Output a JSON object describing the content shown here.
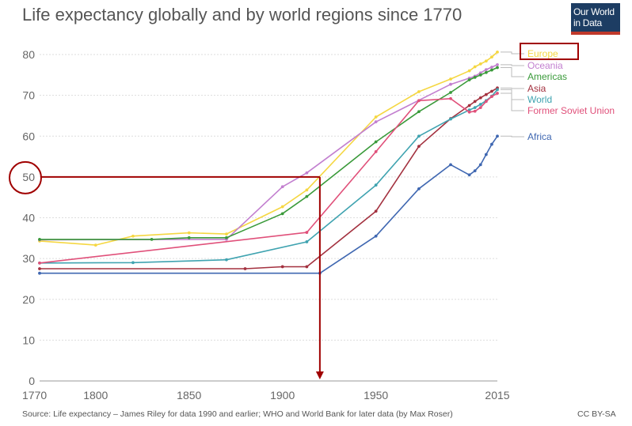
{
  "title": "Life expectancy globally and by world regions since 1770",
  "logo": {
    "line1": "Our World",
    "line2": "in Data"
  },
  "source": "Source: Life expectancy – James Riley for data 1990 and earlier; WHO and World Bank for later data (by Max Roser)",
  "license": "CC BY-SA",
  "colors": {
    "Europe": "#f5d742",
    "Oceania": "#c27fcf",
    "Americas": "#3a9a3a",
    "Asia": "#a3313f",
    "World": "#3fa3b0",
    "Former Soviet Union": "#e0507a",
    "Africa": "#3f67b1",
    "annotation": "#a00000",
    "grid": "#dddddd",
    "axis_text": "#666666"
  },
  "chart_data": {
    "type": "line",
    "xlabel": "",
    "ylabel": "",
    "xlim": [
      1770,
      2015
    ],
    "ylim": [
      0,
      80
    ],
    "x_ticks": [
      1770,
      1800,
      1850,
      1900,
      1950,
      2015
    ],
    "y_ticks": [
      0,
      10,
      20,
      30,
      40,
      50,
      60,
      70,
      80
    ],
    "grid": "horizontal dotted",
    "series": [
      {
        "name": "Europe",
        "points": [
          [
            1770,
            34.3
          ],
          [
            1800,
            33.3
          ],
          [
            1820,
            35.5
          ],
          [
            1850,
            36.3
          ],
          [
            1870,
            36
          ],
          [
            1900,
            42.7
          ],
          [
            1913,
            46.8
          ],
          [
            1950,
            64.7
          ],
          [
            1973,
            70.9
          ],
          [
            1990,
            74
          ],
          [
            2000,
            76
          ],
          [
            2003,
            77
          ],
          [
            2006,
            77.7
          ],
          [
            2009,
            78.4
          ],
          [
            2012,
            79.4
          ],
          [
            2015,
            80.6
          ]
        ]
      },
      {
        "name": "Oceania",
        "points": [
          [
            1770,
            34.6
          ],
          [
            1870,
            34.7
          ],
          [
            1900,
            47.6
          ],
          [
            1913,
            51
          ],
          [
            1950,
            63.5
          ],
          [
            1990,
            72.7
          ],
          [
            2000,
            74.2
          ],
          [
            2003,
            74.7
          ],
          [
            2006,
            75.5
          ],
          [
            2009,
            76.3
          ],
          [
            2012,
            76.9
          ],
          [
            2015,
            77.5
          ]
        ]
      },
      {
        "name": "Americas",
        "points": [
          [
            1770,
            34.7
          ],
          [
            1830,
            34.7
          ],
          [
            1850,
            35.1
          ],
          [
            1870,
            35.1
          ],
          [
            1900,
            41
          ],
          [
            1913,
            45.2
          ],
          [
            1950,
            58.6
          ],
          [
            1973,
            66
          ],
          [
            1990,
            70.7
          ],
          [
            2000,
            73.8
          ],
          [
            2003,
            74.4
          ],
          [
            2006,
            75
          ],
          [
            2009,
            75.6
          ],
          [
            2012,
            76.2
          ],
          [
            2015,
            76.8
          ]
        ]
      },
      {
        "name": "Asia",
        "points": [
          [
            1770,
            27.5
          ],
          [
            1880,
            27.5
          ],
          [
            1900,
            28
          ],
          [
            1913,
            28
          ],
          [
            1950,
            41.6
          ],
          [
            1973,
            57.5
          ],
          [
            1990,
            64.3
          ],
          [
            2000,
            67.5
          ],
          [
            2003,
            68.5
          ],
          [
            2006,
            69.4
          ],
          [
            2009,
            70.2
          ],
          [
            2012,
            71
          ],
          [
            2015,
            71.8
          ]
        ]
      },
      {
        "name": "World",
        "points": [
          [
            1770,
            28.9
          ],
          [
            1820,
            29
          ],
          [
            1870,
            29.7
          ],
          [
            1913,
            34.1
          ],
          [
            1950,
            48
          ],
          [
            1973,
            60
          ],
          [
            1990,
            64.2
          ],
          [
            2000,
            66.4
          ],
          [
            2003,
            67
          ],
          [
            2006,
            67.8
          ],
          [
            2009,
            68.7
          ],
          [
            2012,
            69.8
          ],
          [
            2015,
            71.4
          ]
        ]
      },
      {
        "name": "Former Soviet Union",
        "points": [
          [
            1770,
            28.9
          ],
          [
            1913,
            36.4
          ],
          [
            1950,
            56.2
          ],
          [
            1973,
            68.7
          ],
          [
            1990,
            69.2
          ],
          [
            2000,
            65.9
          ],
          [
            2003,
            66.1
          ],
          [
            2006,
            67
          ],
          [
            2009,
            68.5
          ],
          [
            2012,
            69.7
          ],
          [
            2015,
            70.5
          ]
        ]
      },
      {
        "name": "Africa",
        "points": [
          [
            1770,
            26.4
          ],
          [
            1920,
            26.4
          ],
          [
            1950,
            35.5
          ],
          [
            1973,
            47.1
          ],
          [
            1990,
            53
          ],
          [
            2000,
            50.5
          ],
          [
            2003,
            51.5
          ],
          [
            2006,
            53
          ],
          [
            2009,
            55.5
          ],
          [
            2012,
            58
          ],
          [
            2015,
            60
          ]
        ]
      }
    ],
    "label_order": [
      "Europe",
      "Oceania",
      "Americas",
      "Asia",
      "World",
      "Former Soviet Union",
      "Africa"
    ],
    "annotation": {
      "y_value": 50,
      "x_value": 1920,
      "highlighted_label": "Europe"
    }
  }
}
